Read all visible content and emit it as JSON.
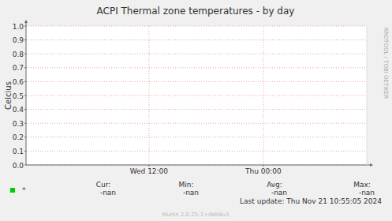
{
  "chart_data": {
    "type": "line",
    "title": "ACPI Thermal zone temperatures - by day",
    "y_label": "Celcius",
    "x": [],
    "xlim": [
      -0.9,
      34.85
    ],
    "xticks": [
      {
        "value": 12,
        "label": "Wed 12:00"
      },
      {
        "value": 24,
        "label": "Thu 00:00"
      }
    ],
    "ylim": [
      0,
      1
    ],
    "yticks": [
      {
        "value": 0,
        "label": "0.0"
      },
      {
        "value": 0.1,
        "label": "0.1"
      },
      {
        "value": 0.2,
        "label": "0.2"
      },
      {
        "value": 0.3,
        "label": "0.3"
      },
      {
        "value": 0.4,
        "label": "0.4"
      },
      {
        "value": 0.5,
        "label": "0.5"
      },
      {
        "value": 0.6,
        "label": "0.6"
      },
      {
        "value": 0.7,
        "label": "0.7"
      },
      {
        "value": 0.8,
        "label": "0.8"
      },
      {
        "value": 0.9,
        "label": "0.9"
      },
      {
        "value": 1,
        "label": "1.0"
      }
    ],
    "grid": true,
    "series": [
      {
        "name": "*",
        "color": "#00cc00",
        "values": []
      }
    ],
    "legend_stats": {
      "labels": [
        "Cur:",
        "Min:",
        "Avg:",
        "Max:"
      ],
      "values": [
        "-nan",
        "-nan",
        "-nan",
        "-nan"
      ]
    },
    "last_update": "Last update:  Thu Nov 21 10:55:05 2024",
    "footer": "Munin 2.0.25-1+deb8u3",
    "side_text": "RRDTOOL / TOBI OETIKER"
  }
}
